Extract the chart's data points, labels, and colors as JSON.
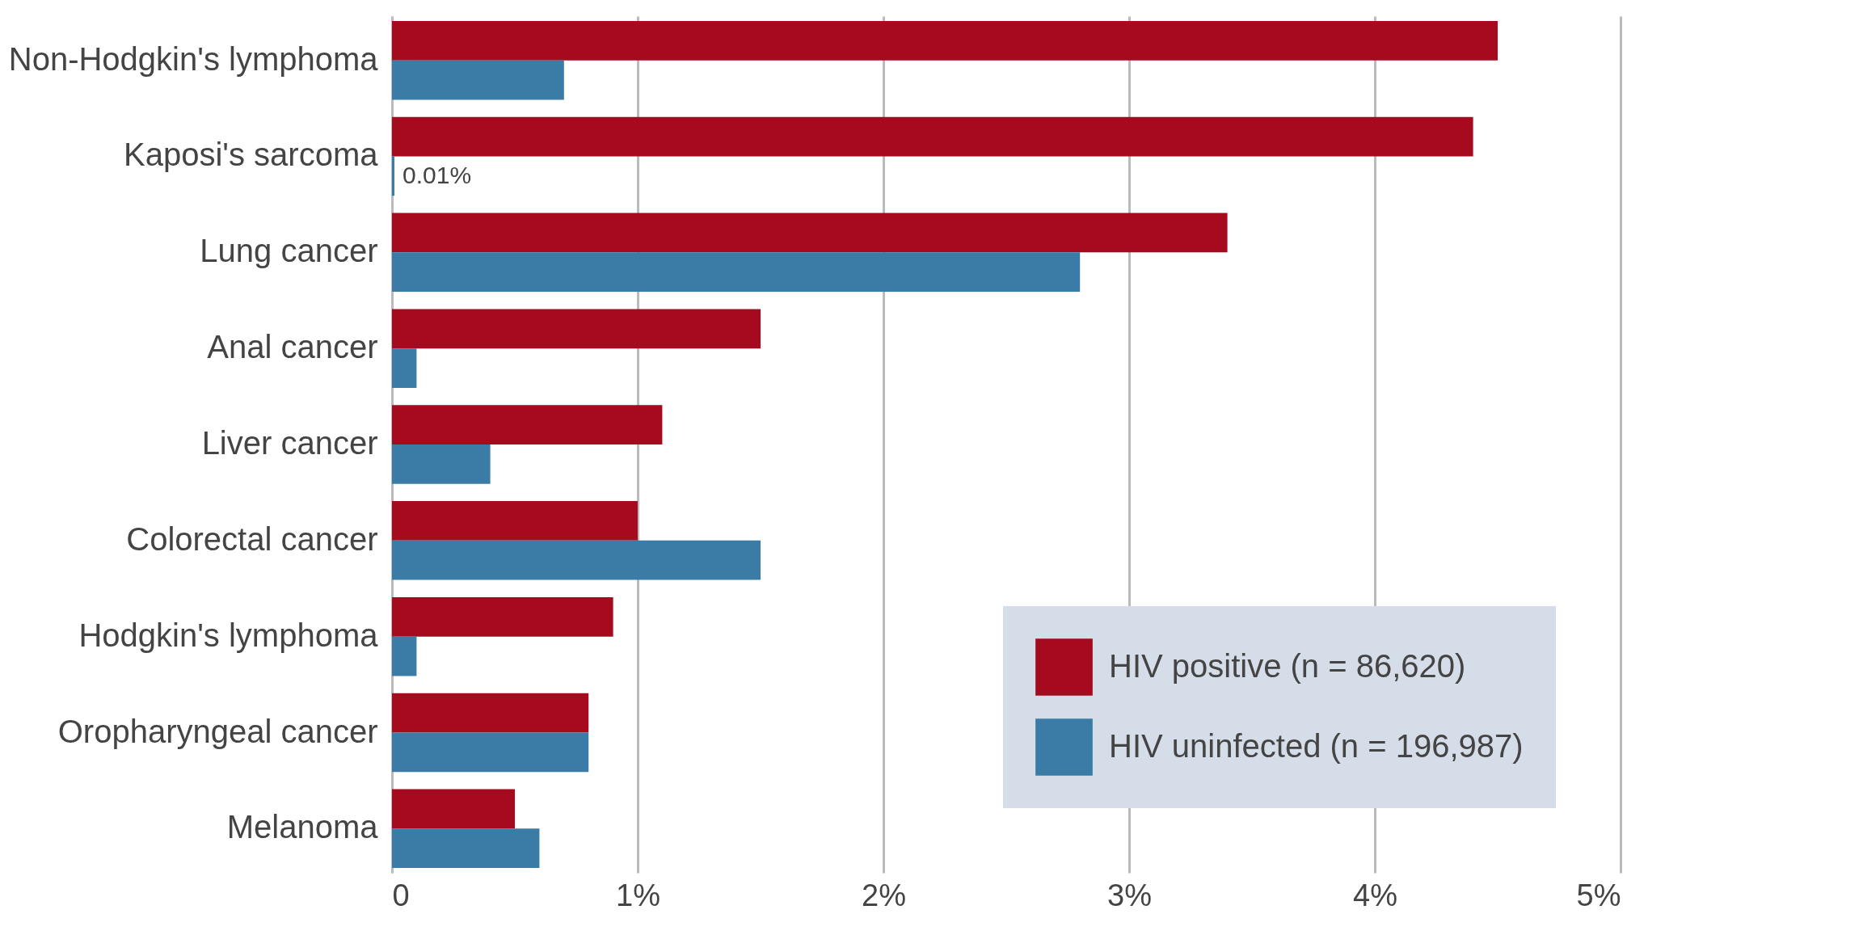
{
  "chart_data": {
    "type": "bar",
    "orientation": "horizontal",
    "categories": [
      "Non-Hodgkin's lymphoma",
      "Kaposi's sarcoma",
      "Lung cancer",
      "Anal cancer",
      "Liver cancer",
      "Colorectal cancer",
      "Hodgkin's lymphoma",
      "Oropharyngeal cancer",
      "Melanoma"
    ],
    "series": [
      {
        "name": "HIV positive (n = 86,620)",
        "color": "#a50a1e",
        "values": [
          4.5,
          4.4,
          3.4,
          1.5,
          1.1,
          1.0,
          0.9,
          0.8,
          0.5
        ]
      },
      {
        "name": "HIV uninfected (n = 196,987)",
        "color": "#3a7ca5",
        "values": [
          0.7,
          0.01,
          2.8,
          0.1,
          0.4,
          1.5,
          0.1,
          0.8,
          0.6
        ],
        "value_labels": [
          null,
          "0.01%",
          null,
          null,
          null,
          null,
          null,
          null,
          null
        ]
      }
    ],
    "xlim": [
      0,
      5
    ],
    "xticks": [
      0,
      {
        "value": 1,
        "label": "1%"
      },
      {
        "value": 2,
        "label": "2%"
      },
      {
        "value": 3,
        "label": "3%"
      },
      {
        "value": 4,
        "label": "4%"
      },
      {
        "value": 5,
        "label": "5%"
      }
    ],
    "grid": "x",
    "legend": "bottom right"
  }
}
